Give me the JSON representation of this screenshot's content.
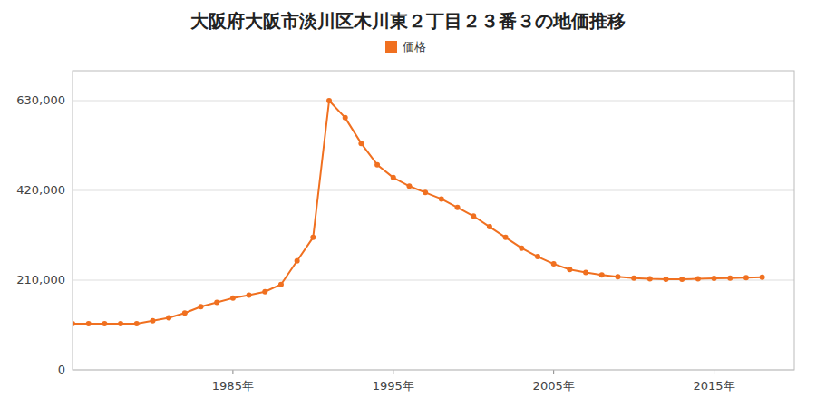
{
  "chart_data": {
    "type": "line",
    "title": "大阪府大阪市淡川区木川東２丁目２３番３の地価推移",
    "x": [
      1975,
      1976,
      1977,
      1978,
      1979,
      1980,
      1981,
      1982,
      1983,
      1984,
      1985,
      1986,
      1987,
      1988,
      1989,
      1990,
      1991,
      1992,
      1993,
      1994,
      1995,
      1996,
      1997,
      1998,
      1999,
      2000,
      2001,
      2002,
      2003,
      2004,
      2005,
      2006,
      2007,
      2008,
      2009,
      2010,
      2011,
      2012,
      2013,
      2014,
      2015,
      2016,
      2017,
      2018
    ],
    "series": [
      {
        "name": "価格",
        "color": "#f07020",
        "marker": "circle",
        "line_style": "solid",
        "values": [
          108000,
          108000,
          108000,
          108000,
          108000,
          115000,
          122000,
          133000,
          148000,
          158000,
          168000,
          175000,
          183000,
          200000,
          255000,
          310000,
          630000,
          590000,
          530000,
          480000,
          450000,
          430000,
          415000,
          400000,
          380000,
          360000,
          335000,
          310000,
          285000,
          265000,
          248000,
          235000,
          228000,
          222000,
          218000,
          215000,
          213000,
          212000,
          212000,
          213000,
          214000,
          215000,
          216000,
          217000
        ]
      }
    ],
    "xlim": [
      1975,
      2020
    ],
    "xticks": [
      {
        "value": 1985,
        "label": "1985年"
      },
      {
        "value": 1995,
        "label": "1995年"
      },
      {
        "value": 2005,
        "label": "2005年"
      },
      {
        "value": 2015,
        "label": "2015年"
      }
    ],
    "ylim": [
      0,
      700000
    ],
    "yticks": [
      0,
      {
        "value": 210000,
        "label": "210,000"
      },
      {
        "value": 420000,
        "label": "420,000"
      },
      {
        "value": 630000,
        "label": "630,000"
      }
    ],
    "grid": "y",
    "legend": "top"
  }
}
